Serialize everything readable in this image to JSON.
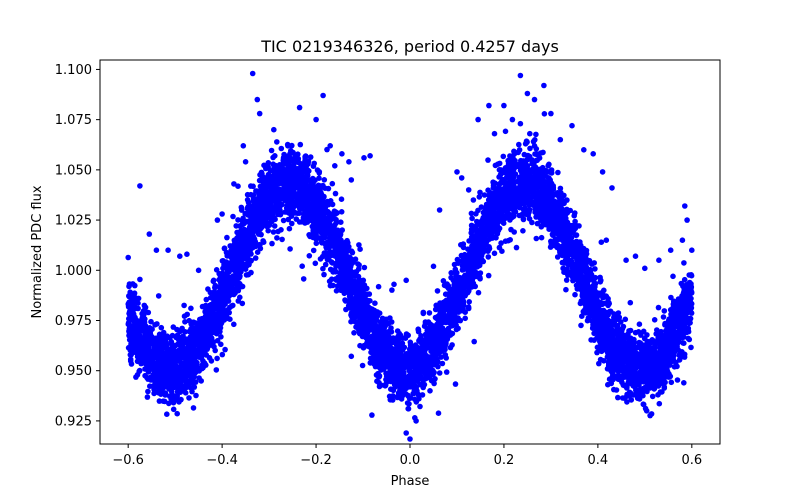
{
  "chart_data": {
    "type": "scatter",
    "title": "TIC 0219346326, period 0.4257 days",
    "xlabel": "Phase",
    "ylabel": "Normalized PDC flux",
    "xlim": [
      -0.66,
      0.66
    ],
    "ylim": [
      0.9135,
      1.1047
    ],
    "x_ticks": [
      -0.6,
      -0.4,
      -0.2,
      0.0,
      0.2,
      0.4,
      0.6
    ],
    "x_tick_labels": [
      "−0.6",
      "−0.4",
      "−0.2",
      "0.0",
      "0.2",
      "0.4",
      "0.6"
    ],
    "y_ticks": [
      0.925,
      0.95,
      0.975,
      1.0,
      1.025,
      1.05,
      1.075,
      1.1
    ],
    "y_tick_labels": [
      "0.925",
      "0.950",
      "0.975",
      "1.000",
      "1.025",
      "1.050",
      "1.075",
      "1.100"
    ],
    "grid": false,
    "series": [
      {
        "color": "#0000ff",
        "marker": "circle",
        "model": {
          "x_range": [
            -0.6,
            0.6
          ],
          "point_count": 7000,
          "baseline": 0.997,
          "amplitude": 0.046,
          "harmonic_amplitude": 0.0045,
          "min_phase": 0.0,
          "secondary_min_phases": [
            -0.5,
            0.5
          ],
          "max_phases": [
            -0.24,
            0.27
          ],
          "scatter_sigma": 0.0085
        },
        "outliers": [
          [
            -0.335,
            1.098
          ],
          [
            -0.325,
            1.085
          ],
          [
            -0.29,
            1.07
          ],
          [
            -0.26,
            1.062
          ],
          [
            -0.235,
            1.081
          ],
          [
            -0.185,
            1.087
          ],
          [
            -0.2,
            1.075
          ],
          [
            -0.17,
            1.062
          ],
          [
            -0.16,
            1.052
          ],
          [
            -0.145,
            1.058
          ],
          [
            -0.13,
            1.054
          ],
          [
            -0.098,
            1.056
          ],
          [
            -0.085,
            1.057
          ],
          [
            -0.125,
            1.045
          ],
          [
            -0.355,
            1.062
          ],
          [
            -0.35,
            1.054
          ],
          [
            -0.375,
            1.043
          ],
          [
            -0.4,
            1.028
          ],
          [
            -0.395,
            1.011
          ],
          [
            -0.45,
            1.0
          ],
          [
            -0.575,
            1.042
          ],
          [
            -0.555,
            1.018
          ],
          [
            -0.54,
            1.01
          ],
          [
            -0.515,
            1.01
          ],
          [
            -0.49,
            1.007
          ],
          [
            -0.475,
            1.008
          ],
          [
            -0.034,
            0.993
          ],
          [
            -0.008,
            0.995
          ],
          [
            0.0,
            0.916
          ],
          [
            -0.008,
            0.919
          ],
          [
            0.013,
            0.925
          ],
          [
            0.05,
            1.002
          ],
          [
            0.1,
            1.049
          ],
          [
            0.11,
            1.046
          ],
          [
            0.125,
            1.04
          ],
          [
            0.135,
            1.035
          ],
          [
            0.063,
            1.03
          ],
          [
            0.168,
            1.082
          ],
          [
            0.145,
            1.075
          ],
          [
            0.2,
            1.082
          ],
          [
            0.18,
            1.068
          ],
          [
            0.235,
            1.097
          ],
          [
            0.25,
            1.088
          ],
          [
            0.285,
            1.092
          ],
          [
            0.265,
            1.085
          ],
          [
            0.235,
            1.073
          ],
          [
            0.218,
            1.075
          ],
          [
            0.255,
            1.068
          ],
          [
            0.32,
            1.065
          ],
          [
            0.345,
            1.072
          ],
          [
            0.37,
            1.06
          ],
          [
            0.39,
            1.058
          ],
          [
            0.41,
            1.049
          ],
          [
            0.43,
            1.041
          ],
          [
            0.418,
            1.015
          ],
          [
            0.46,
            1.005
          ],
          [
            0.48,
            1.007
          ],
          [
            0.5,
            1.001
          ],
          [
            0.53,
            1.005
          ],
          [
            0.555,
            1.01
          ],
          [
            0.56,
            0.997
          ],
          [
            0.58,
            1.015
          ],
          [
            0.59,
            1.025
          ],
          [
            0.585,
            1.032
          ],
          [
            0.6,
            1.01
          ],
          [
            -0.41,
            1.025
          ],
          [
            -0.32,
            1.078
          ],
          [
            0.3,
            1.078
          ],
          [
            0.265,
            1.062
          ]
        ]
      }
    ]
  }
}
